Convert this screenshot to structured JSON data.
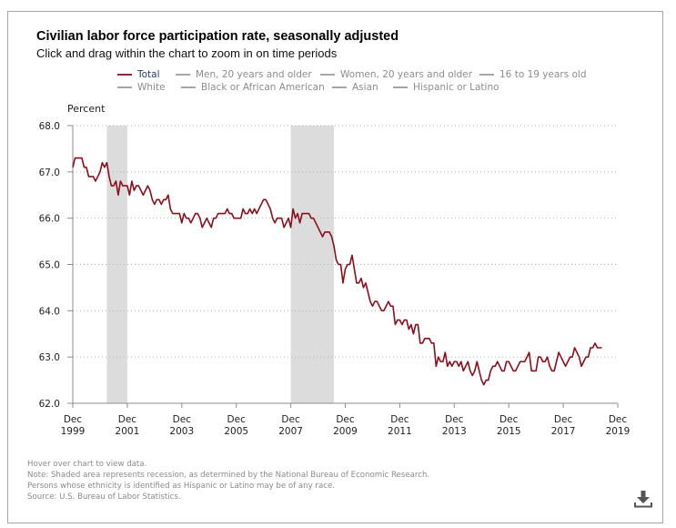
{
  "header": {
    "title": "Civilian labor force participation rate, seasonally adjusted",
    "subtitle": "Click and drag within the chart to zoom in on time periods"
  },
  "legend": {
    "items": [
      {
        "label": "Total",
        "active": true
      },
      {
        "label": "Men, 20 years and older",
        "active": false
      },
      {
        "label": "Women, 20 years and older",
        "active": false
      },
      {
        "label": "16 to 19 years old",
        "active": false
      },
      {
        "label": "White",
        "active": false
      },
      {
        "label": "Black or African American",
        "active": false
      },
      {
        "label": "Asian",
        "active": false
      },
      {
        "label": "Hispanic or Latino",
        "active": false
      }
    ]
  },
  "colors": {
    "series": "#8b0e1a",
    "recession": "#dcdcdc",
    "grid": "#b0b0b0",
    "axis": "#8c8c8c",
    "legend_active_text": "#2b3a67",
    "legend_active_swatch": "#8b2a3a",
    "legend_inactive": "#a6a6a6"
  },
  "notes": {
    "lines": [
      "Hover over chart to view data.",
      "Note: Shaded area represents recession, as determined by the National Bureau of Economic Research.",
      "Persons whose ethnicity is identified as Hispanic or Latino may be of any race.",
      "Source: U.S. Bureau of Labor Statistics."
    ]
  },
  "download": {
    "icon": "download-icon"
  },
  "chart_data": {
    "type": "line",
    "title": "Civilian labor force participation rate, seasonally adjusted",
    "ylabel": "Percent",
    "xlabel": "",
    "ylim": [
      62.0,
      68.0
    ],
    "yticks": [
      "62.0",
      "63.0",
      "64.0",
      "65.0",
      "66.0",
      "67.0",
      "68.0"
    ],
    "xlim": [
      "1999-12",
      "2019-12"
    ],
    "xticks": [
      {
        "month": "Dec",
        "year": "1999",
        "date": "1999-12"
      },
      {
        "month": "Dec",
        "year": "2001",
        "date": "2001-12"
      },
      {
        "month": "Dec",
        "year": "2003",
        "date": "2003-12"
      },
      {
        "month": "Dec",
        "year": "2005",
        "date": "2005-12"
      },
      {
        "month": "Dec",
        "year": "2007",
        "date": "2007-12"
      },
      {
        "month": "Dec",
        "year": "2009",
        "date": "2009-12"
      },
      {
        "month": "Dec",
        "year": "2011",
        "date": "2011-12"
      },
      {
        "month": "Dec",
        "year": "2013",
        "date": "2013-12"
      },
      {
        "month": "Dec",
        "year": "2015",
        "date": "2015-12"
      },
      {
        "month": "Dec",
        "year": "2017",
        "date": "2017-12"
      },
      {
        "month": "Dec",
        "year": "2019",
        "date": "2019-12"
      }
    ],
    "grid": true,
    "legend": "top-center",
    "recessions": [
      {
        "start": "2001-03",
        "end": "2001-11"
      },
      {
        "start": "2007-12",
        "end": "2009-06"
      }
    ],
    "series": [
      {
        "name": "Total",
        "start": "1999-12",
        "frequency": "monthly",
        "values": [
          67.1,
          67.3,
          67.3,
          67.3,
          67.3,
          67.1,
          67.1,
          66.9,
          66.9,
          66.9,
          66.8,
          66.9,
          67.0,
          67.2,
          67.1,
          67.2,
          66.9,
          66.7,
          66.7,
          66.8,
          66.5,
          66.8,
          66.7,
          66.7,
          66.7,
          66.5,
          66.8,
          66.6,
          66.7,
          66.7,
          66.6,
          66.5,
          66.6,
          66.7,
          66.6,
          66.4,
          66.3,
          66.4,
          66.4,
          66.3,
          66.4,
          66.4,
          66.5,
          66.2,
          66.1,
          66.1,
          66.1,
          66.1,
          65.9,
          66.1,
          66.0,
          66.0,
          65.9,
          66.0,
          66.1,
          66.1,
          66.0,
          65.8,
          65.9,
          66.0,
          65.9,
          65.8,
          66.0,
          66.0,
          66.1,
          66.1,
          66.1,
          66.1,
          66.2,
          66.1,
          66.1,
          66.0,
          66.0,
          66.0,
          66.0,
          66.2,
          66.1,
          66.1,
          66.2,
          66.1,
          66.2,
          66.1,
          66.2,
          66.3,
          66.4,
          66.4,
          66.3,
          66.2,
          66.0,
          65.9,
          66.0,
          66.0,
          66.0,
          65.8,
          65.9,
          66.0,
          65.8,
          66.2,
          66.0,
          66.1,
          65.9,
          66.1,
          66.1,
          66.1,
          66.1,
          66.0,
          66.0,
          65.9,
          65.8,
          65.7,
          65.6,
          65.7,
          65.7,
          65.7,
          65.6,
          65.4,
          65.1,
          65.0,
          65.0,
          64.6,
          64.9,
          65.0,
          65.0,
          65.2,
          64.9,
          64.6,
          64.6,
          64.7,
          64.5,
          64.6,
          64.4,
          64.2,
          64.1,
          64.2,
          64.2,
          64.1,
          64.0,
          64.0,
          64.1,
          64.2,
          64.1,
          64.1,
          63.7,
          63.8,
          63.8,
          63.7,
          63.8,
          63.8,
          63.6,
          63.7,
          63.5,
          63.7,
          63.7,
          63.3,
          63.3,
          63.4,
          63.4,
          63.4,
          63.3,
          63.3,
          62.8,
          63.0,
          62.9,
          62.9,
          63.1,
          62.8,
          62.9,
          62.8,
          62.9,
          62.9,
          62.8,
          62.9,
          62.7,
          62.8,
          62.9,
          62.7,
          62.6,
          62.7,
          62.9,
          62.7,
          62.5,
          62.4,
          62.5,
          62.5,
          62.7,
          62.8,
          62.8,
          62.9,
          62.8,
          62.7,
          62.7,
          62.9,
          62.9,
          62.8,
          62.7,
          62.7,
          62.8,
          62.9,
          62.9,
          62.9,
          63.0,
          63.1,
          62.7,
          62.7,
          62.7,
          63.0,
          63.0,
          62.9,
          62.9,
          63.0,
          62.8,
          62.7,
          62.7,
          62.9,
          63.1,
          63.0,
          62.9,
          62.8,
          62.9,
          63.0,
          63.0,
          63.2,
          63.1,
          63.0,
          62.8,
          62.9,
          63.0,
          63.0,
          63.2,
          63.2,
          63.3,
          63.2,
          63.2,
          63.2
        ]
      }
    ]
  }
}
